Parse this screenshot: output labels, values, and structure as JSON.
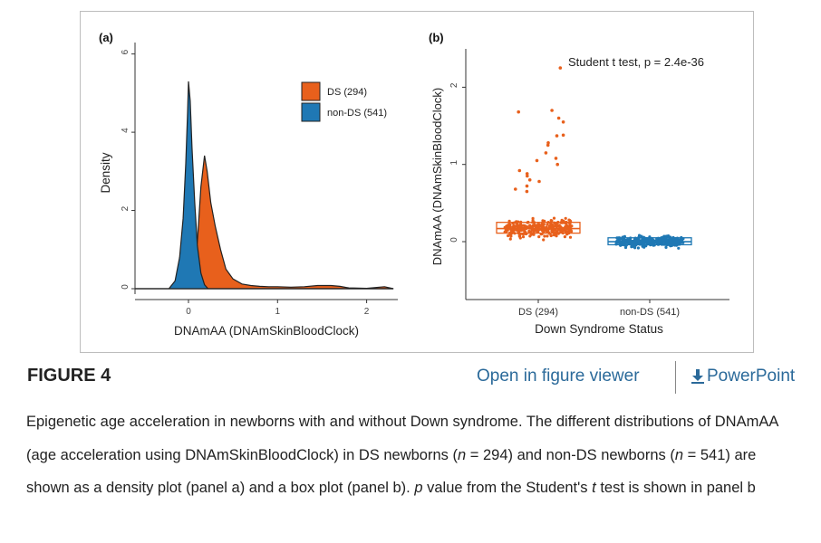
{
  "figure": {
    "label": "FIGURE 4",
    "open_viewer_label": "Open in figure viewer",
    "powerpoint_label": "PowerPoint",
    "download_icon": "download-arrow-icon"
  },
  "caption": {
    "s1": "Epigenetic age acceleration in newborns with and without Down syndrome. The different distributions of DNAmAA (age acceleration using DNAmSkinBloodClock) in DS newborns (",
    "n1": "n",
    "s2": " = 294) and non-DS newborns (",
    "n2": "n",
    "s3": " = 541) are shown as a density plot (panel a) and a box plot (panel b). ",
    "p": "p",
    "s4": " value from the Student's ",
    "t": "t",
    "s5": " test is shown in panel b"
  },
  "colors": {
    "ds": "#e8601c",
    "nonds": "#1f78b4",
    "outline": "#222222"
  },
  "chart_data": [
    {
      "type": "area",
      "panel_label": "(a)",
      "xlabel": "DNAmAA (DNAmSkinBloodClock)",
      "ylabel": "Density",
      "xlim": [
        -0.6,
        2.35
      ],
      "ylim": [
        0,
        6.2
      ],
      "x_ticks": [
        0,
        1,
        2
      ],
      "y_ticks": [
        0,
        2,
        4,
        6
      ],
      "grid": false,
      "legend_position": "right",
      "series": [
        {
          "name": "DS (294)",
          "color": "#e8601c",
          "points": [
            [
              -0.6,
              0
            ],
            [
              -0.1,
              0
            ],
            [
              0.0,
              0.05
            ],
            [
              0.05,
              0.3
            ],
            [
              0.1,
              1.2
            ],
            [
              0.14,
              2.6
            ],
            [
              0.18,
              3.4
            ],
            [
              0.21,
              3.0
            ],
            [
              0.25,
              2.2
            ],
            [
              0.3,
              1.6
            ],
            [
              0.36,
              1.0
            ],
            [
              0.42,
              0.5
            ],
            [
              0.5,
              0.25
            ],
            [
              0.6,
              0.12
            ],
            [
              0.7,
              0.08
            ],
            [
              0.8,
              0.06
            ],
            [
              0.9,
              0.05
            ],
            [
              1.0,
              0.05
            ],
            [
              1.15,
              0.04
            ],
            [
              1.3,
              0.05
            ],
            [
              1.45,
              0.08
            ],
            [
              1.6,
              0.08
            ],
            [
              1.7,
              0.06
            ],
            [
              1.8,
              0.02
            ],
            [
              2.0,
              0.01
            ],
            [
              2.2,
              0.05
            ],
            [
              2.3,
              0
            ]
          ]
        },
        {
          "name": "non-DS (541)",
          "color": "#1f78b4",
          "points": [
            [
              -0.6,
              0
            ],
            [
              -0.22,
              0
            ],
            [
              -0.15,
              0.2
            ],
            [
              -0.1,
              0.8
            ],
            [
              -0.06,
              1.8
            ],
            [
              -0.03,
              3.2
            ],
            [
              -0.01,
              4.5
            ],
            [
              0.0,
              5.3
            ],
            [
              0.02,
              4.8
            ],
            [
              0.04,
              3.6
            ],
            [
              0.07,
              2.2
            ],
            [
              0.1,
              1.1
            ],
            [
              0.14,
              0.4
            ],
            [
              0.18,
              0.1
            ],
            [
              0.22,
              0
            ],
            [
              2.3,
              0
            ]
          ]
        }
      ]
    },
    {
      "type": "scatter",
      "panel_label": "(b)",
      "annotation": "Student t test, p = 2.4e-36",
      "xlabel": "Down Syndrome Status",
      "ylabel": "DNAmAA (DNAmSkinBloodClock)",
      "categories": [
        "DS (294)",
        "non-DS (541)"
      ],
      "ylim": [
        -0.75,
        2.45
      ],
      "y_ticks": [
        0,
        1,
        2
      ],
      "grid": false,
      "series": [
        {
          "name": "DS (294)",
          "color": "#e8601c",
          "n": 294,
          "q1": 0.11,
          "median": 0.17,
          "q3": 0.25,
          "outliers": [
            2.25,
            1.7,
            1.68,
            1.6,
            1.55,
            1.38,
            1.37,
            1.28,
            1.25,
            1.15,
            1.08,
            1.05,
            1.0,
            0.92,
            0.88,
            0.85,
            0.8,
            0.78,
            0.72,
            0.68,
            0.65
          ]
        },
        {
          "name": "non-DS (541)",
          "color": "#1f78b4",
          "n": 541,
          "q1": -0.04,
          "median": 0.0,
          "q3": 0.05
        }
      ]
    }
  ]
}
